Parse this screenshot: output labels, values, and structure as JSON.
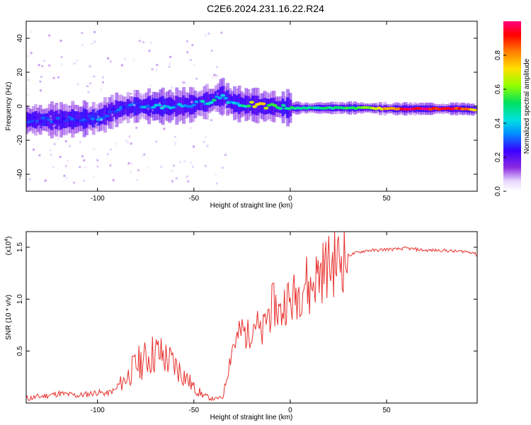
{
  "title": "C2E6.2024.231.16.22.R24",
  "chart_data": [
    {
      "type": "heatmap",
      "title": "C2E6.2024.231.16.22.R24",
      "xlabel": "Height of straight line (km)",
      "ylabel": "Frequency (Hz)",
      "xlim": [
        -137,
        97
      ],
      "ylim": [
        -50,
        50
      ],
      "xticks": [
        -100,
        -50,
        0,
        50
      ],
      "yticks": [
        -40,
        -20,
        0,
        20,
        40
      ],
      "colorbar": {
        "label": "Normalized spectral amplitude",
        "range": [
          0,
          1
        ],
        "ticks": [
          0.0,
          0.2,
          0.4,
          0.6,
          0.8
        ]
      },
      "ridge": {
        "x": [
          -135,
          -120,
          -100,
          -90,
          -80,
          -70,
          -60,
          -50,
          -45,
          -40,
          -35,
          -30,
          -25,
          -20,
          -15,
          -10,
          0,
          10,
          20,
          30,
          40,
          50,
          60,
          70,
          80,
          90,
          95
        ],
        "frequency": [
          -8,
          -8,
          -7,
          -2,
          0,
          0,
          0,
          1,
          2,
          4,
          6,
          2,
          1,
          1,
          0,
          0,
          -1,
          -1,
          -1,
          -1,
          -1,
          -1.5,
          -1.5,
          -1.5,
          -1.5,
          -1.5,
          -2
        ],
        "amplitude": [
          0.28,
          0.3,
          0.32,
          0.3,
          0.33,
          0.38,
          0.36,
          0.35,
          0.4,
          0.45,
          0.42,
          0.4,
          0.48,
          0.7,
          0.75,
          0.55,
          0.5,
          0.5,
          0.5,
          0.55,
          0.6,
          0.8,
          0.95,
          0.97,
          0.95,
          0.9,
          0.75
        ]
      }
    },
    {
      "type": "line",
      "xlabel": "Height of straight line (km)",
      "ylabel": "SNR (10 * v/v)",
      "scale_label": "(x10",
      "scale_exp": "4",
      "xlim": [
        -137,
        97
      ],
      "ylim": [
        0,
        1.65
      ],
      "xticks": [
        -100,
        -50,
        0,
        50
      ],
      "yticks": [
        0.5,
        1.0,
        1.5
      ],
      "ytick_labels": [
        "0.5",
        "1.0",
        "1.5"
      ],
      "color": "#e8312d",
      "series": [
        {
          "x": [
            -137,
            -130,
            -120,
            -110,
            -100,
            -95,
            -90,
            -85,
            -80,
            -75,
            -70,
            -65,
            -60,
            -55,
            -50,
            -45,
            -40,
            -35,
            -32,
            -30,
            -28,
            -25,
            -22,
            -20,
            -18,
            -15,
            -12,
            -10,
            -8,
            -5,
            -2,
            0,
            3,
            5,
            8,
            10,
            12,
            15,
            18,
            20,
            25,
            30,
            35,
            40,
            45,
            50,
            55,
            60,
            65,
            70,
            75,
            80,
            85,
            90,
            95,
            97
          ],
          "values": [
            0.03,
            0.05,
            0.08,
            0.06,
            0.09,
            0.08,
            0.12,
            0.2,
            0.3,
            0.35,
            0.4,
            0.36,
            0.3,
            0.22,
            0.12,
            0.06,
            0.03,
            0.05,
            0.35,
            0.55,
            0.6,
            0.7,
            0.65,
            0.75,
            0.8,
            0.62,
            0.85,
            0.9,
            0.95,
            0.85,
            1.02,
            0.95,
            1.05,
            1.1,
            1.2,
            1.05,
            1.18,
            1.25,
            1.3,
            1.32,
            1.38,
            1.42,
            1.45,
            1.47,
            1.47,
            1.48,
            1.48,
            1.49,
            1.48,
            1.47,
            1.47,
            1.47,
            1.46,
            1.46,
            1.45,
            1.42
          ]
        }
      ]
    }
  ]
}
